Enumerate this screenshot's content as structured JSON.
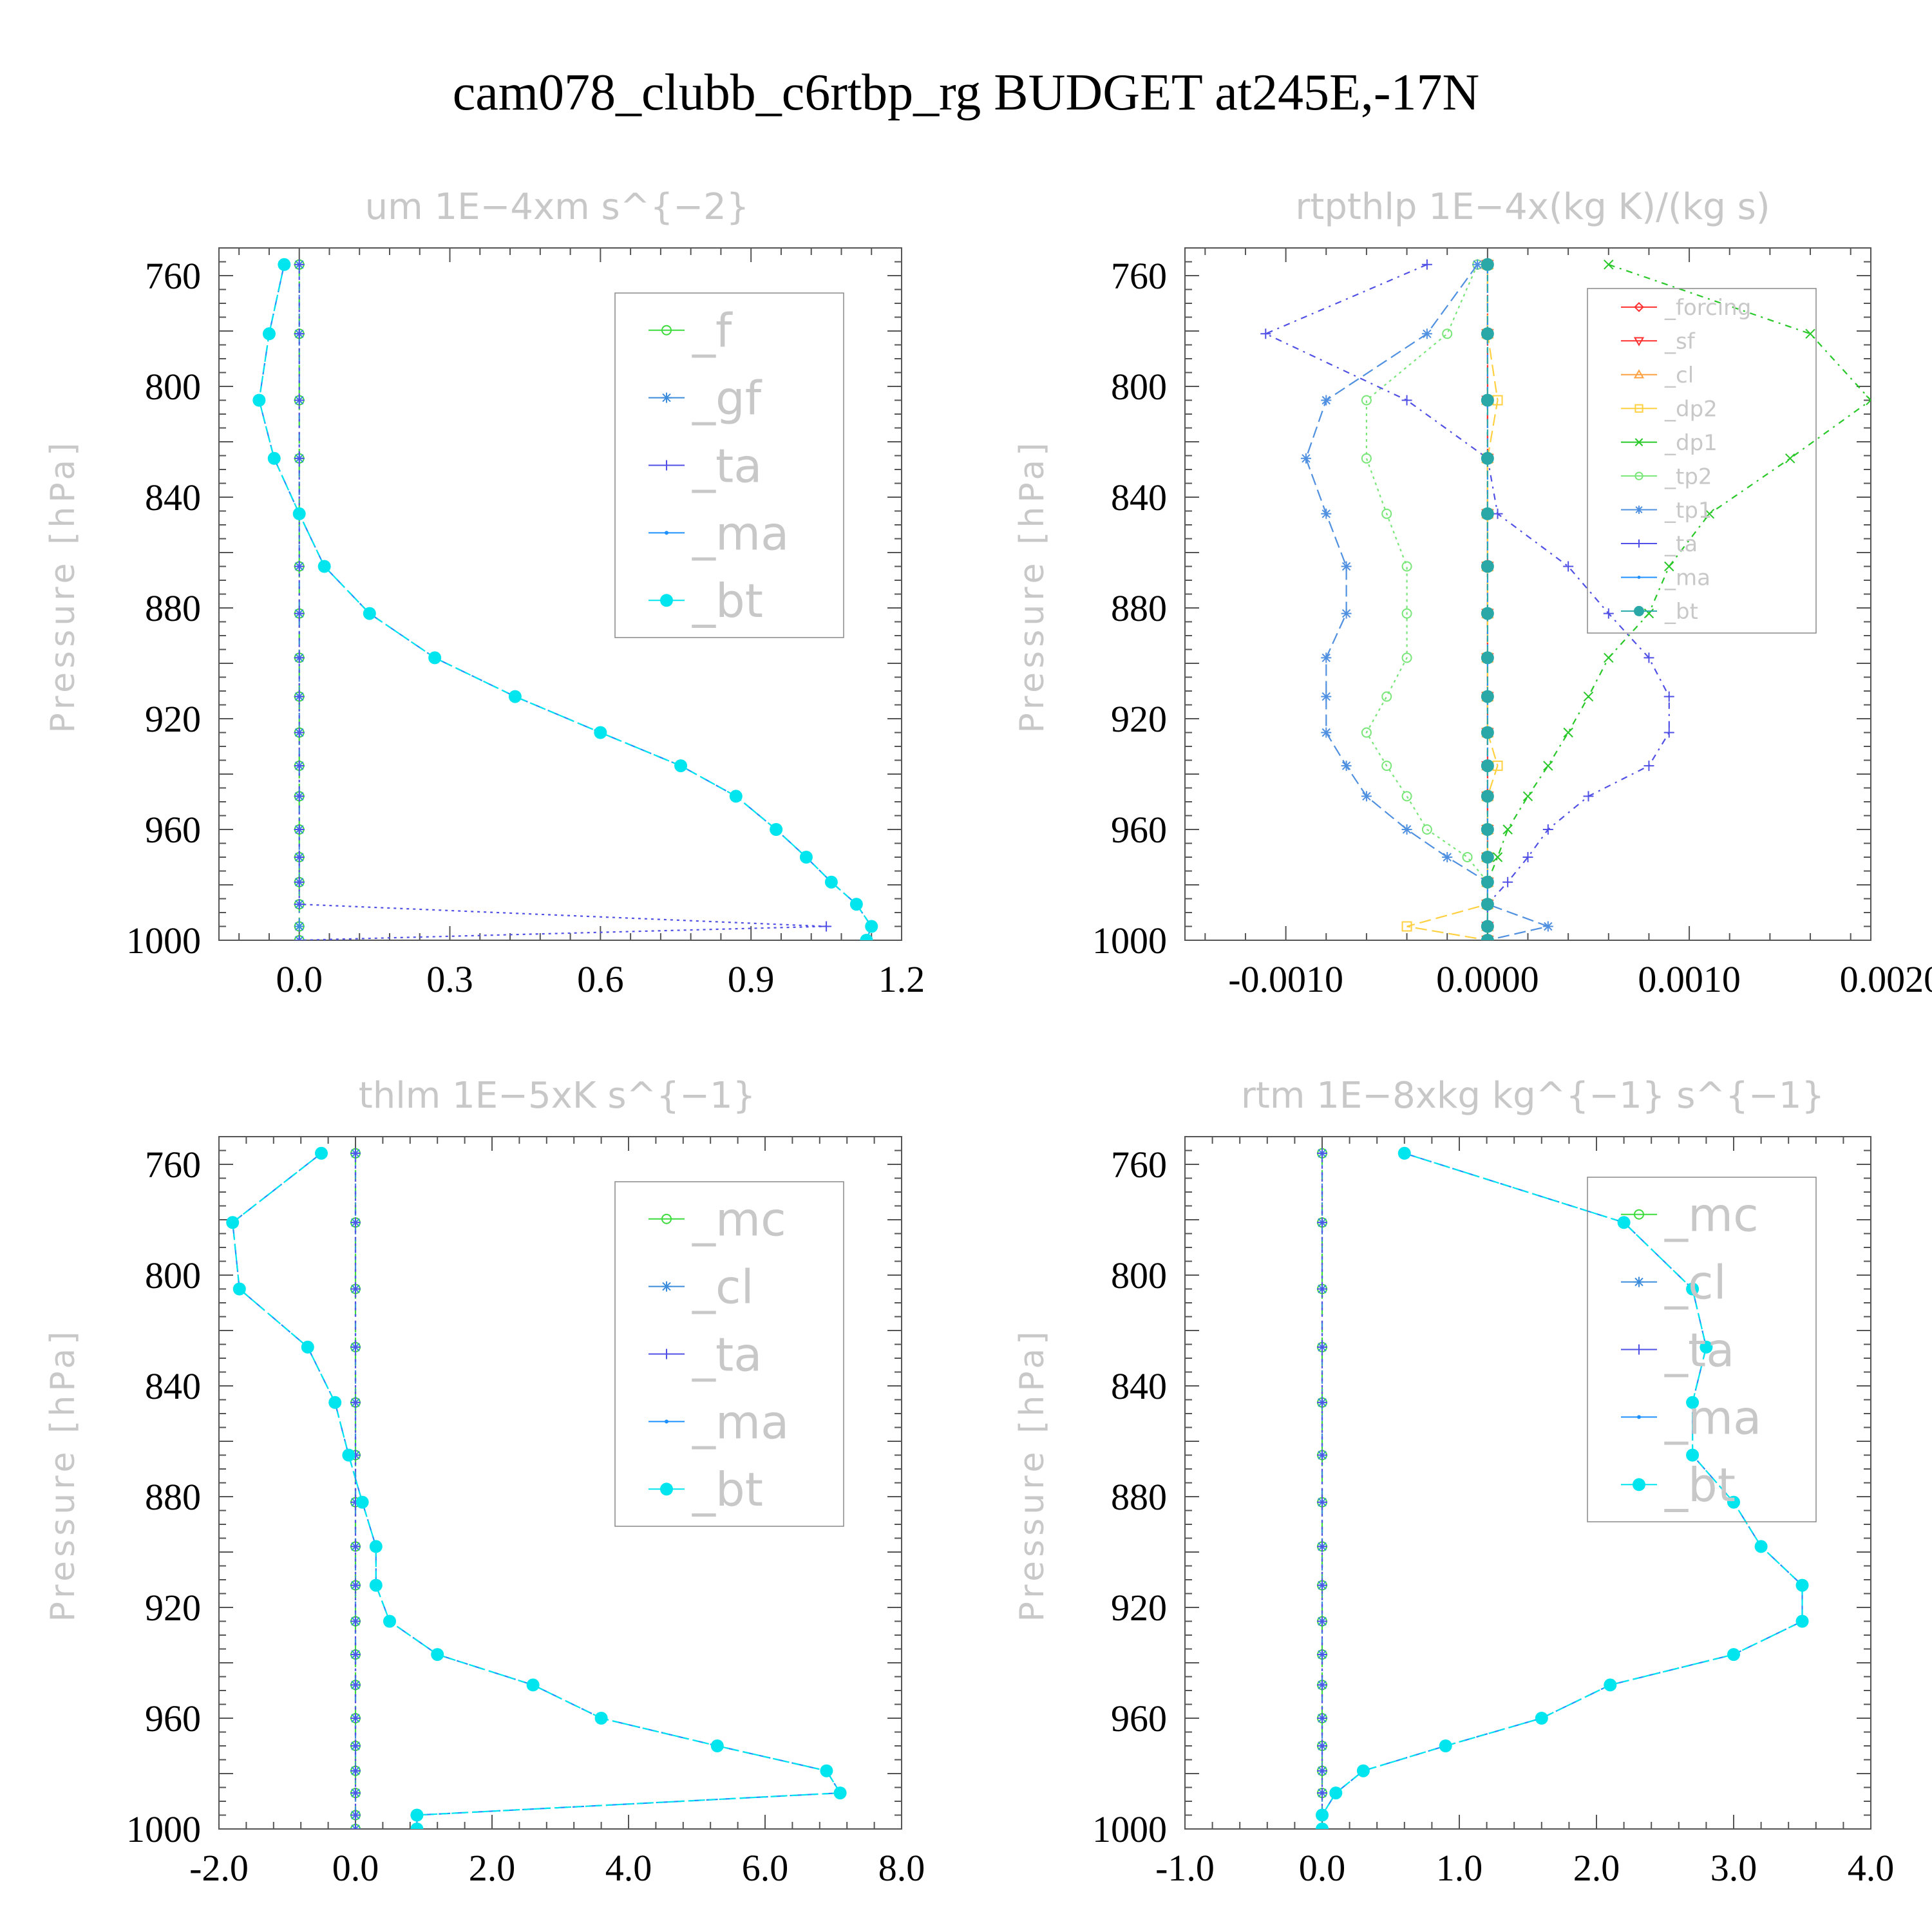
{
  "page": {
    "title": "cam078_clubb_c6rtbp_rg  BUDGET at245E,-17N"
  },
  "chart_data": [
    {
      "type": "line",
      "title": "um   1E−4xm s^{−2}",
      "ylabel": "Pressure [hPa]",
      "xlim": [
        -0.16,
        1.2
      ],
      "xticks": [
        "0.0",
        "0.3",
        "0.6",
        "0.9",
        "1.2"
      ],
      "xtick_values": [
        0.0,
        0.3,
        0.6,
        0.9,
        1.2
      ],
      "ylim": [
        750,
        1000
      ],
      "yticks": [
        "760",
        "800",
        "840",
        "880",
        "920",
        "960",
        "1000"
      ],
      "ytick_values": [
        760,
        800,
        840,
        880,
        920,
        960,
        1000
      ],
      "legend": [
        "_f",
        "_gf",
        "_ta",
        "_ma",
        "_bt"
      ],
      "legend_size": "large",
      "levels": [
        756,
        781,
        805,
        826,
        846,
        865,
        882,
        898,
        912,
        925,
        937,
        948,
        960,
        970,
        979,
        987,
        995,
        1000
      ],
      "series": [
        {
          "name": "_f",
          "color": "#3cdc3c",
          "marker": "circle",
          "values": [
            0,
            0,
            0,
            0,
            0,
            0,
            0,
            0,
            0,
            0,
            0,
            0,
            0,
            0,
            0,
            0,
            0,
            0
          ]
        },
        {
          "name": "_gf",
          "color": "#3c8cdc",
          "marker": "star",
          "values": [
            0,
            0,
            0,
            0,
            0,
            0,
            0,
            0,
            0,
            0,
            0,
            0,
            0,
            0,
            0,
            0,
            0,
            0
          ]
        },
        {
          "name": "_ta",
          "color": "#5050e6",
          "marker": "plus",
          "values": [
            0,
            0,
            0,
            0,
            0,
            0,
            0,
            0,
            0,
            0,
            0,
            0,
            0,
            0,
            0,
            0,
            1.05,
            0
          ]
        },
        {
          "name": "_ma",
          "color": "#1e90ff",
          "marker": "dot",
          "values": [
            -0.03,
            -0.06,
            -0.08,
            -0.05,
            0.0,
            0.05,
            0.14,
            0.27,
            0.43,
            0.6,
            0.76,
            0.87,
            0.95,
            1.01,
            1.06,
            1.11,
            1.14,
            1.13
          ]
        },
        {
          "name": "_bt",
          "color": "#00e5ee",
          "marker": "bigdot",
          "values": [
            -0.03,
            -0.06,
            -0.08,
            -0.05,
            0.0,
            0.05,
            0.14,
            0.27,
            0.43,
            0.6,
            0.76,
            0.87,
            0.95,
            1.01,
            1.06,
            1.11,
            1.14,
            1.13
          ]
        }
      ]
    },
    {
      "type": "line",
      "title": "rtpthlp   1E−4x(kg K)/(kg s)",
      "ylabel": "Pressure [hPa]",
      "xlim": [
        -0.0015,
        0.0019
      ],
      "xticks": [
        "-0.0010",
        "0.0000",
        "0.0010",
        "0.0020"
      ],
      "xtick_values": [
        -0.001,
        0.0,
        0.001,
        0.002
      ],
      "ylim": [
        750,
        1000
      ],
      "yticks": [
        "760",
        "800",
        "840",
        "880",
        "920",
        "960",
        "1000"
      ],
      "ytick_values": [
        760,
        800,
        840,
        880,
        920,
        960,
        1000
      ],
      "legend": [
        "_forcing",
        "_sf",
        "_cl",
        "_dp2",
        "_dp1",
        "_tp2",
        "_tp1",
        "_ta",
        "_ma",
        "_bt"
      ],
      "legend_size": "small",
      "levels": [
        756,
        781,
        805,
        826,
        846,
        865,
        882,
        898,
        912,
        925,
        937,
        948,
        960,
        970,
        979,
        987,
        995,
        1000
      ],
      "series": [
        {
          "name": "_forcing",
          "color": "#ff3030",
          "marker": "diamond",
          "values": [
            0,
            0,
            0,
            0,
            0,
            0,
            0,
            0,
            0,
            0,
            0,
            0,
            0,
            0,
            0,
            0,
            0,
            0
          ]
        },
        {
          "name": "_sf",
          "color": "#ff3030",
          "marker": "tri-down",
          "values": [
            0,
            0,
            0,
            0,
            0,
            0,
            0,
            0,
            0,
            0,
            0,
            0,
            0,
            0,
            0,
            0,
            0,
            0
          ]
        },
        {
          "name": "_cl",
          "color": "#ffa040",
          "marker": "tri-up",
          "values": [
            0,
            0,
            0,
            0,
            0,
            0,
            0,
            0,
            0,
            0,
            0,
            0,
            0,
            0,
            0,
            0,
            0,
            0
          ]
        },
        {
          "name": "_dp2",
          "color": "#ffd040",
          "marker": "square",
          "values": [
            0,
            0,
            5e-05,
            0,
            0,
            0,
            0,
            0,
            0,
            0,
            5e-05,
            0,
            0,
            0,
            0,
            0,
            -0.0004,
            0
          ]
        },
        {
          "name": "_dp1",
          "color": "#28c828",
          "marker": "cross",
          "values": [
            0.0006,
            0.0016,
            0.0019,
            0.0015,
            0.0011,
            0.0009,
            0.0008,
            0.0006,
            0.0005,
            0.0004,
            0.0003,
            0.0002,
            0.0001,
            5e-05,
            0,
            0,
            0,
            0
          ]
        },
        {
          "name": "_tp2",
          "color": "#78e678",
          "marker": "circle",
          "values": [
            -5e-05,
            -0.0002,
            -0.0006,
            -0.0006,
            -0.0005,
            -0.0004,
            -0.0004,
            -0.0004,
            -0.0005,
            -0.0006,
            -0.0005,
            -0.0004,
            -0.0003,
            -0.0001,
            0,
            0,
            0,
            0
          ]
        },
        {
          "name": "_tp1",
          "color": "#5090e0",
          "marker": "star",
          "values": [
            -5e-05,
            -0.0003,
            -0.0008,
            -0.0009,
            -0.0008,
            -0.0007,
            -0.0007,
            -0.0008,
            -0.0008,
            -0.0008,
            -0.0007,
            -0.0006,
            -0.0004,
            -0.0002,
            0,
            0,
            0.0003,
            0
          ]
        },
        {
          "name": "_ta",
          "color": "#5050e6",
          "marker": "plus",
          "values": [
            -0.0003,
            -0.0011,
            -0.0004,
            0,
            5e-05,
            0.0004,
            0.0006,
            0.0008,
            0.0009,
            0.0009,
            0.0008,
            0.0005,
            0.0003,
            0.0002,
            0.0001,
            0,
            0,
            0
          ]
        },
        {
          "name": "_ma",
          "color": "#1e90ff",
          "marker": "dot",
          "values": [
            0,
            0,
            0,
            0,
            0,
            0,
            0,
            0,
            0,
            0,
            0,
            0,
            0,
            0,
            0,
            0,
            0,
            0
          ]
        },
        {
          "name": "_bt",
          "color": "#2aa8a8",
          "marker": "bigdot",
          "values": [
            0,
            0,
            0,
            0,
            0,
            0,
            0,
            0,
            0,
            0,
            0,
            0,
            0,
            0,
            0,
            0,
            0,
            0
          ]
        }
      ]
    },
    {
      "type": "line",
      "title": "thlm   1E−5xK s^{−1}",
      "ylabel": "Pressure [hPa]",
      "xlim": [
        -2.0,
        8.0
      ],
      "xticks": [
        "-2.0",
        "0.0",
        "2.0",
        "4.0",
        "6.0",
        "8.0"
      ],
      "xtick_values": [
        -2.0,
        0.0,
        2.0,
        4.0,
        6.0,
        8.0
      ],
      "ylim": [
        750,
        1000
      ],
      "yticks": [
        "760",
        "800",
        "840",
        "880",
        "920",
        "960",
        "1000"
      ],
      "ytick_values": [
        760,
        800,
        840,
        880,
        920,
        960,
        1000
      ],
      "legend": [
        "_mc",
        "_cl",
        "_ta",
        "_ma",
        "_bt"
      ],
      "legend_size": "large",
      "levels": [
        756,
        781,
        805,
        826,
        846,
        865,
        882,
        898,
        912,
        925,
        937,
        948,
        960,
        970,
        979,
        987,
        995,
        1000
      ],
      "series": [
        {
          "name": "_mc",
          "color": "#3cdc3c",
          "marker": "circle",
          "values": [
            0,
            0,
            0,
            0,
            0,
            0,
            0,
            0,
            0,
            0,
            0,
            0,
            0,
            0,
            0,
            0,
            0,
            0
          ]
        },
        {
          "name": "_cl",
          "color": "#3c8cdc",
          "marker": "star",
          "values": [
            0,
            0,
            0,
            0,
            0,
            0,
            0,
            0,
            0,
            0,
            0,
            0,
            0,
            0,
            0,
            0,
            0,
            0
          ]
        },
        {
          "name": "_ta",
          "color": "#5050e6",
          "marker": "plus",
          "values": [
            0,
            0,
            0,
            0,
            0,
            0,
            0,
            0,
            0,
            0,
            0,
            0,
            0,
            0,
            0,
            0,
            0,
            0
          ]
        },
        {
          "name": "_ma",
          "color": "#1e90ff",
          "marker": "dot",
          "values": [
            -0.5,
            -1.8,
            -1.7,
            -0.7,
            -0.3,
            -0.1,
            0.1,
            0.3,
            0.3,
            0.5,
            1.2,
            2.6,
            3.6,
            5.3,
            6.9,
            7.1,
            0.9,
            0.9
          ]
        },
        {
          "name": "_bt",
          "color": "#00e5ee",
          "marker": "bigdot",
          "values": [
            -0.5,
            -1.8,
            -1.7,
            -0.7,
            -0.3,
            -0.1,
            0.1,
            0.3,
            0.3,
            0.5,
            1.2,
            2.6,
            3.6,
            5.3,
            6.9,
            7.1,
            0.9,
            0.9
          ]
        }
      ]
    },
    {
      "type": "line",
      "title": "rtm   1E−8xkg kg^{−1} s^{−1}",
      "ylabel": "Pressure [hPa]",
      "xlim": [
        -1.0,
        4.0
      ],
      "xticks": [
        "-1.0",
        "0.0",
        "1.0",
        "2.0",
        "3.0",
        "4.0"
      ],
      "xtick_values": [
        -1.0,
        0.0,
        1.0,
        2.0,
        3.0,
        4.0
      ],
      "ylim": [
        750,
        1000
      ],
      "yticks": [
        "760",
        "800",
        "840",
        "880",
        "920",
        "960",
        "1000"
      ],
      "ytick_values": [
        760,
        800,
        840,
        880,
        920,
        960,
        1000
      ],
      "legend": [
        "_mc",
        "_cl",
        "_ta",
        "_ma",
        "_bt"
      ],
      "legend_size": "large",
      "levels": [
        756,
        781,
        805,
        826,
        846,
        865,
        882,
        898,
        912,
        925,
        937,
        948,
        960,
        970,
        979,
        987,
        995,
        1000
      ],
      "series": [
        {
          "name": "_mc",
          "color": "#3cdc3c",
          "marker": "circle",
          "values": [
            0,
            0,
            0,
            0,
            0,
            0,
            0,
            0,
            0,
            0,
            0,
            0,
            0,
            0,
            0,
            0,
            0,
            0
          ]
        },
        {
          "name": "_cl",
          "color": "#3c8cdc",
          "marker": "star",
          "values": [
            0,
            0,
            0,
            0,
            0,
            0,
            0,
            0,
            0,
            0,
            0,
            0,
            0,
            0,
            0,
            0,
            0,
            0
          ]
        },
        {
          "name": "_ta",
          "color": "#5050e6",
          "marker": "plus",
          "values": [
            0,
            0,
            0,
            0,
            0,
            0,
            0,
            0,
            0,
            0,
            0,
            0,
            0,
            0,
            0,
            0,
            0,
            0
          ]
        },
        {
          "name": "_ma",
          "color": "#1e90ff",
          "marker": "dot",
          "values": [
            0.6,
            2.2,
            2.7,
            2.8,
            2.7,
            2.7,
            3.0,
            3.2,
            3.5,
            3.5,
            3.0,
            2.1,
            1.6,
            0.9,
            0.3,
            0.1,
            0.0,
            0.0
          ]
        },
        {
          "name": "_bt",
          "color": "#00e5ee",
          "marker": "bigdot",
          "values": [
            0.6,
            2.2,
            2.7,
            2.8,
            2.7,
            2.7,
            3.0,
            3.2,
            3.5,
            3.5,
            3.0,
            2.1,
            1.6,
            0.9,
            0.3,
            0.1,
            0.0,
            0.0
          ]
        }
      ]
    }
  ]
}
